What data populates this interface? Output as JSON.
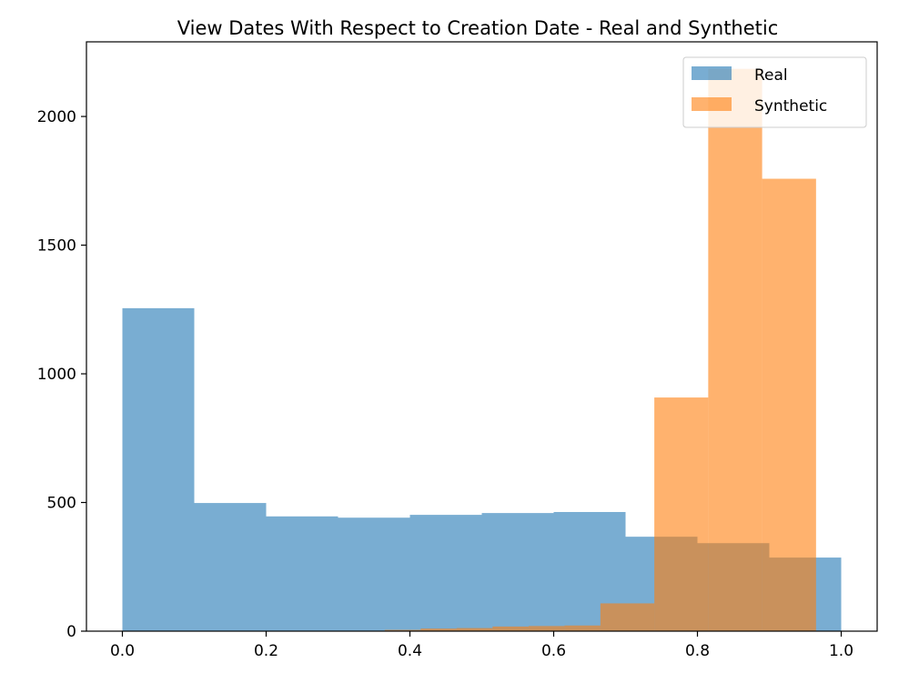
{
  "chart_data": {
    "type": "histogram",
    "title": "View Dates With Respect to Creation Date - Real and Synthetic",
    "xlabel": "",
    "ylabel": "",
    "xlim": [
      -0.05,
      1.05
    ],
    "ylim": [
      0,
      2290
    ],
    "xticks": [
      0.0,
      0.2,
      0.4,
      0.6,
      0.8,
      1.0
    ],
    "xtick_labels": [
      "0.0",
      "0.2",
      "0.4",
      "0.6",
      "0.8",
      "1.0"
    ],
    "yticks": [
      0,
      500,
      1000,
      1500,
      2000
    ],
    "ytick_labels": [
      "0",
      "500",
      "1000",
      "1500",
      "2000"
    ],
    "grid": false,
    "legend_position": "top-right",
    "series": [
      {
        "name": "Real",
        "color": "#1f77b4",
        "alpha": 0.6,
        "bin_edges": [
          0.0,
          0.1,
          0.2,
          0.3,
          0.4,
          0.5,
          0.6,
          0.7,
          0.8,
          0.9,
          1.0
        ],
        "counts": [
          1255,
          498,
          446,
          441,
          452,
          459,
          463,
          367,
          342,
          286
        ]
      },
      {
        "name": "Synthetic",
        "color": "#ff7f0e",
        "alpha": 0.6,
        "bin_edges": [
          0.365,
          0.415,
          0.465,
          0.515,
          0.565,
          0.615,
          0.665,
          0.74,
          0.815,
          0.89,
          0.965
        ],
        "counts": [
          5,
          10,
          12,
          18,
          20,
          22,
          108,
          908,
          2185,
          1758
        ]
      }
    ]
  }
}
